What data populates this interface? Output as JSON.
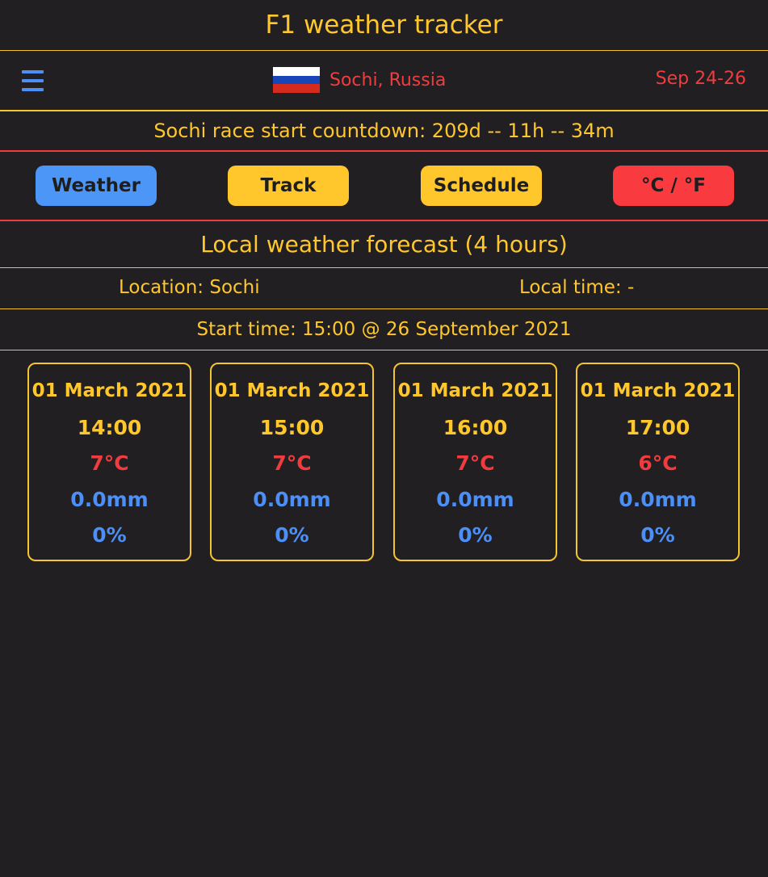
{
  "app": {
    "title": "F1 weather tracker"
  },
  "race": {
    "flag_country": "Russia",
    "flag_colors": [
      "#ffffff",
      "#1845b8",
      "#d52b1e"
    ],
    "name": "Sochi, Russia",
    "dates": "Sep 24-26",
    "menu_icon": "hamburger-menu-icon"
  },
  "countdown": {
    "text": "Sochi race start countdown: 209d -- 11h -- 34m"
  },
  "tabs": [
    {
      "label": "Weather",
      "color": "#4b96f7"
    },
    {
      "label": "Track",
      "color": "#ffc72c"
    },
    {
      "label": "Schedule",
      "color": "#ffc72c"
    },
    {
      "label": "°C / °F",
      "color": "#f93a3e"
    }
  ],
  "forecast": {
    "title": "Local weather forecast (4 hours)",
    "location": "Location: Sochi",
    "local_time": "Local time: -",
    "start_time": "Start time: 15:00 @ 26 September 2021",
    "hours": [
      {
        "date": "01 March 2021",
        "time": "14:00",
        "temp": "7°C",
        "rain": "0.0mm",
        "chance": "0%"
      },
      {
        "date": "01 March 2021",
        "time": "15:00",
        "temp": "7°C",
        "rain": "0.0mm",
        "chance": "0%"
      },
      {
        "date": "01 March 2021",
        "time": "16:00",
        "temp": "7°C",
        "rain": "0.0mm",
        "chance": "0%"
      },
      {
        "date": "01 March 2021",
        "time": "17:00",
        "temp": "6°C",
        "rain": "0.0mm",
        "chance": "0%"
      }
    ]
  },
  "colors": {
    "background": "#211f22",
    "accent_yellow": "#ffc72c",
    "accent_red": "#ef3d3f",
    "accent_blue": "#4b8ff7"
  }
}
